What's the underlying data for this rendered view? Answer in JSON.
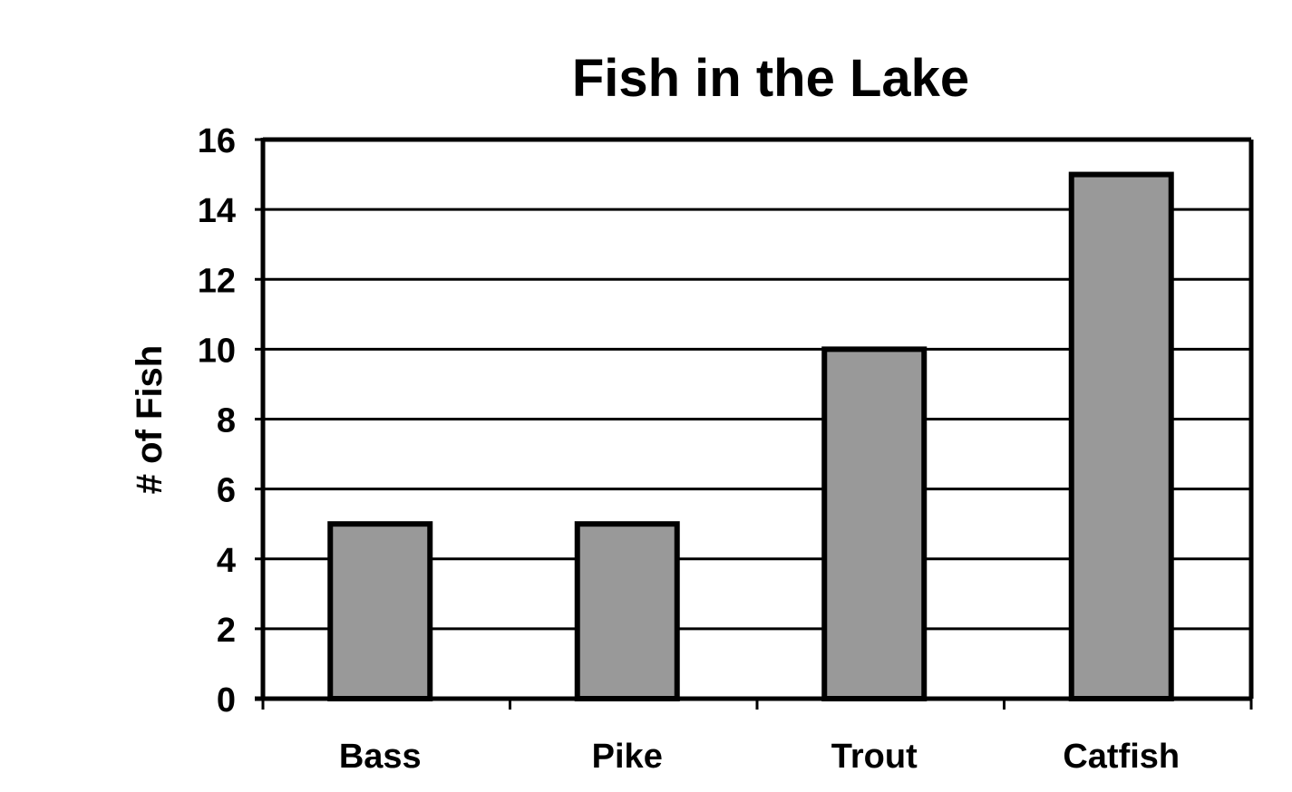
{
  "chart_data": {
    "type": "bar",
    "title": "Fish in the Lake",
    "xlabel": "",
    "ylabel": "# of Fish",
    "categories": [
      "Bass",
      "Pike",
      "Trout",
      "Catfish"
    ],
    "values": [
      5,
      5,
      10,
      15
    ],
    "ylim": [
      0,
      16
    ],
    "yticks": [
      "0",
      "2",
      "4",
      "6",
      "8",
      "10",
      "12",
      "14",
      "16"
    ],
    "grid": true,
    "legend": "none",
    "colors": {
      "bar_fill": "#999999",
      "bar_stroke": "#000000",
      "grid": "#000000",
      "background": "#ffffff"
    }
  }
}
